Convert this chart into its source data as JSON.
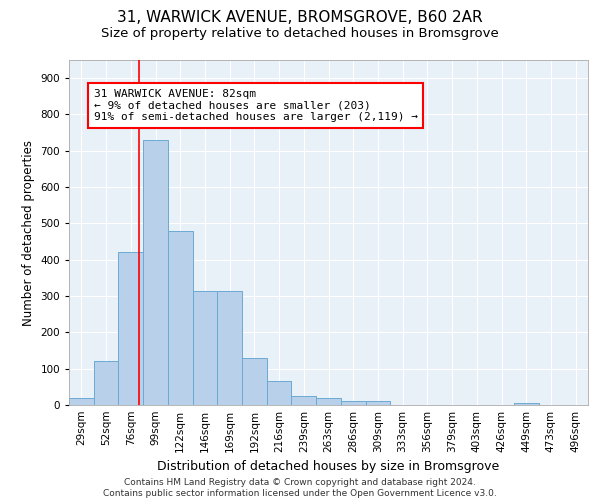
{
  "title_line1": "31, WARWICK AVENUE, BROMSGROVE, B60 2AR",
  "title_line2": "Size of property relative to detached houses in Bromsgrove",
  "xlabel": "Distribution of detached houses by size in Bromsgrove",
  "ylabel": "Number of detached properties",
  "categories": [
    "29sqm",
    "52sqm",
    "76sqm",
    "99sqm",
    "122sqm",
    "146sqm",
    "169sqm",
    "192sqm",
    "216sqm",
    "239sqm",
    "263sqm",
    "286sqm",
    "309sqm",
    "333sqm",
    "356sqm",
    "379sqm",
    "403sqm",
    "426sqm",
    "449sqm",
    "473sqm",
    "496sqm"
  ],
  "values": [
    20,
    120,
    420,
    730,
    480,
    315,
    315,
    130,
    65,
    25,
    20,
    10,
    10,
    0,
    0,
    0,
    0,
    0,
    5,
    0,
    0
  ],
  "bar_color": "#b8d0ea",
  "bar_edge_color": "#6aaad4",
  "bar_width": 1.0,
  "vline_x": 2.35,
  "vline_color": "red",
  "annotation_text_line1": "31 WARWICK AVENUE: 82sqm",
  "annotation_text_line2": "← 9% of detached houses are smaller (203)",
  "annotation_text_line3": "91% of semi-detached houses are larger (2,119) →",
  "box_color": "red",
  "ylim": [
    0,
    950
  ],
  "yticks": [
    0,
    100,
    200,
    300,
    400,
    500,
    600,
    700,
    800,
    900
  ],
  "background_color": "#e8f0f8",
  "grid_color": "white",
  "footer_line1": "Contains HM Land Registry data © Crown copyright and database right 2024.",
  "footer_line2": "Contains public sector information licensed under the Open Government Licence v3.0.",
  "title_fontsize": 11,
  "subtitle_fontsize": 9.5,
  "xlabel_fontsize": 9,
  "ylabel_fontsize": 8.5,
  "tick_fontsize": 7.5,
  "annotation_fontsize": 8,
  "footer_fontsize": 6.5
}
